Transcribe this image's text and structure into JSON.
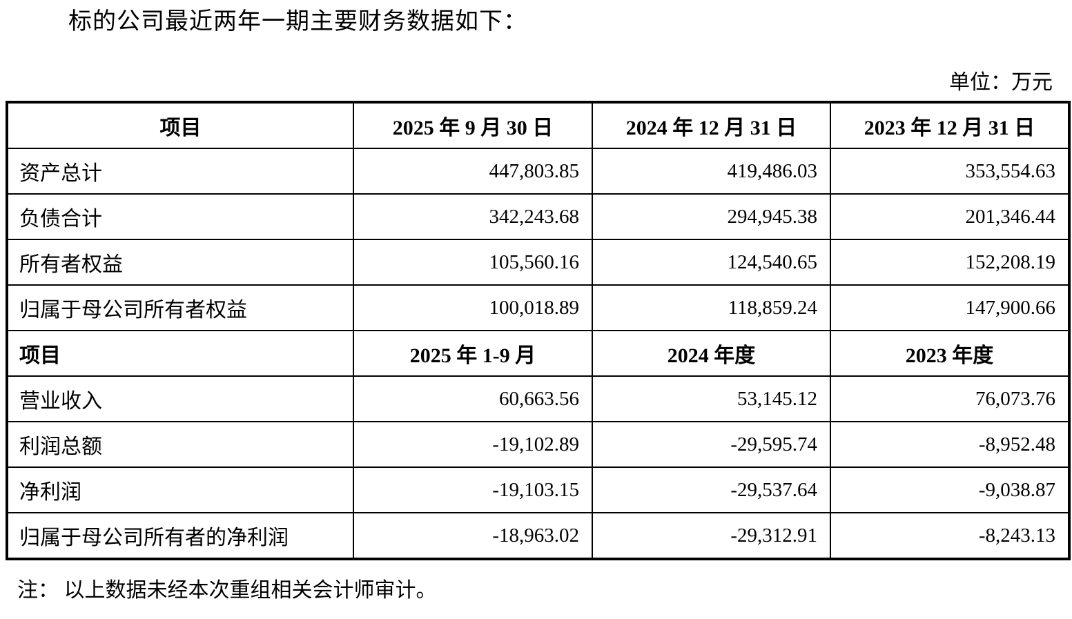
{
  "page": {
    "title": "标的公司最近两年一期主要财务数据如下：",
    "unit_label": "单位：万元",
    "note": "注： 以上数据未经本次重组相关会计师审计。"
  },
  "table": {
    "section1": {
      "headers": [
        "项目",
        "2025 年 9 月 30 日",
        "2024 年 12 月 31 日",
        "2023 年 12 月 31 日"
      ],
      "rows": [
        {
          "label": "资产总计",
          "values": [
            "447,803.85",
            "419,486.03",
            "353,554.63"
          ]
        },
        {
          "label": "负债合计",
          "values": [
            "342,243.68",
            "294,945.38",
            "201,346.44"
          ]
        },
        {
          "label": "所有者权益",
          "values": [
            "105,560.16",
            "124,540.65",
            "152,208.19"
          ]
        },
        {
          "label": "归属于母公司所有者权益",
          "values": [
            "100,018.89",
            "118,859.24",
            "147,900.66"
          ]
        }
      ]
    },
    "section2": {
      "headers": [
        "项目",
        "2025 年 1-9 月",
        "2024 年度",
        "2023 年度"
      ],
      "rows": [
        {
          "label": "营业收入",
          "values": [
            "60,663.56",
            "53,145.12",
            "76,073.76"
          ]
        },
        {
          "label": "利润总额",
          "values": [
            "-19,102.89",
            "-29,595.74",
            "-8,952.48"
          ]
        },
        {
          "label": "净利润",
          "values": [
            "-19,103.15",
            "-29,537.64",
            "-9,038.87"
          ]
        },
        {
          "label": "归属于母公司所有者的净利润",
          "values": [
            "-18,963.02",
            "-29,312.91",
            "-8,243.13"
          ]
        }
      ]
    }
  }
}
